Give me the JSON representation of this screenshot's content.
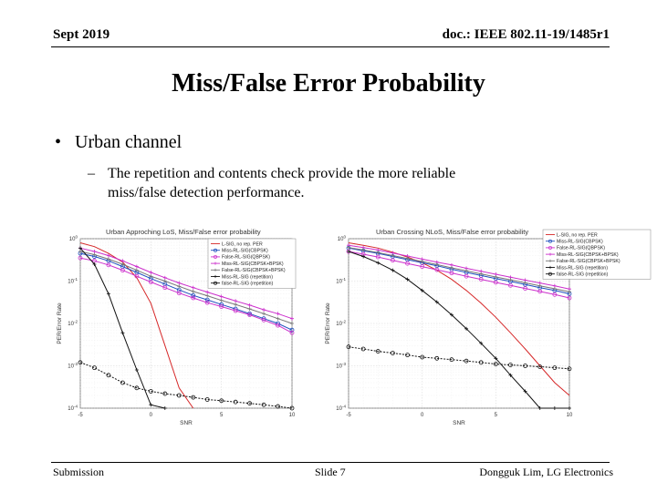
{
  "header": {
    "date": "Sept 2019",
    "doc": "doc.: IEEE 802.11-19/1485r1"
  },
  "title": "Miss/False Error Probability",
  "bullets": [
    {
      "text": "Urban channel",
      "sub": [
        "The repetition and contents check provide the more reliable",
        "miss/false detection performance."
      ]
    }
  ],
  "footer": {
    "left": "Submission",
    "center": "Slide 7",
    "right": "Dongguk Lim, LG Electronics"
  },
  "chart_data": [
    {
      "type": "line",
      "title": "Urban Approching LoS, Miss/False error probability",
      "xlabel": "SNR",
      "ylabel": "PER/Error Rate",
      "xlim": [
        -5,
        10
      ],
      "ylog": true,
      "ylim": [
        0.0001,
        1
      ],
      "xticks": [
        "-5",
        "0",
        "5",
        "10"
      ],
      "yticks": [
        "10^0",
        "10^-1",
        "10^-2",
        "10^-3",
        "10^-4"
      ],
      "grid": true,
      "legend_position": "top-right",
      "series": [
        {
          "name": "L-SIG, no rep. PER",
          "color": "#d62728",
          "marker": "none",
          "x": [
            -5,
            -4,
            -3,
            -2,
            -1,
            0,
            1,
            2,
            3
          ],
          "y": [
            0.8,
            0.65,
            0.45,
            0.28,
            0.12,
            0.03,
            0.003,
            0.0003,
            0.0001
          ]
        },
        {
          "name": "Miss-RL-SIG(CBPSK)",
          "color": "#1f4fbf",
          "marker": "circle",
          "x": [
            -5,
            -4,
            -3,
            -2,
            -1,
            0,
            1,
            2,
            3,
            4,
            5,
            6,
            7,
            8,
            9,
            10
          ],
          "y": [
            0.45,
            0.38,
            0.3,
            0.22,
            0.16,
            0.115,
            0.085,
            0.062,
            0.046,
            0.036,
            0.028,
            0.022,
            0.017,
            0.013,
            0.01,
            0.007
          ]
        },
        {
          "name": "False-RL-SIG(QBPSK)",
          "color": "#cc2fcc",
          "marker": "circle",
          "x": [
            -5,
            -4,
            -3,
            -2,
            -1,
            0,
            1,
            2,
            3,
            4,
            5,
            6,
            7,
            8,
            9,
            10
          ],
          "y": [
            0.35,
            0.3,
            0.24,
            0.18,
            0.13,
            0.095,
            0.07,
            0.052,
            0.04,
            0.031,
            0.025,
            0.02,
            0.016,
            0.012,
            0.009,
            0.006
          ]
        },
        {
          "name": "Miss-RL-SIG(CBPSK+BPSK)",
          "color": "#cc2fcc",
          "marker": "plus",
          "x": [
            -5,
            -4,
            -3,
            -2,
            -1,
            0,
            1,
            2,
            3,
            4,
            5,
            6,
            7,
            8,
            9,
            10
          ],
          "y": [
            0.6,
            0.5,
            0.4,
            0.3,
            0.22,
            0.16,
            0.12,
            0.09,
            0.07,
            0.055,
            0.043,
            0.034,
            0.027,
            0.021,
            0.017,
            0.013
          ]
        },
        {
          "name": "False-RL-SIG(CBPSK+BPSK)",
          "color": "#777777",
          "marker": "plus",
          "x": [
            -5,
            -4,
            -3,
            -2,
            -1,
            0,
            1,
            2,
            3,
            4,
            5,
            6,
            7,
            8,
            9,
            10
          ],
          "y": [
            0.5,
            0.42,
            0.33,
            0.25,
            0.18,
            0.13,
            0.1,
            0.075,
            0.057,
            0.045,
            0.035,
            0.028,
            0.022,
            0.017,
            0.013,
            0.01
          ]
        },
        {
          "name": "Miss-RL-SIG (repetition)",
          "color": "#111111",
          "marker": "plus",
          "x": [
            -5,
            -4,
            -3,
            -2,
            -1,
            0,
            1
          ],
          "y": [
            0.6,
            0.25,
            0.05,
            0.006,
            0.0008,
            0.00012,
            0.0001
          ]
        },
        {
          "name": "false-RL-SIG (repetition)",
          "color": "#111111",
          "marker": "circle",
          "x": [
            -5,
            -4,
            -3,
            -2,
            -1,
            0,
            1,
            2,
            3,
            4,
            5,
            6,
            7,
            8,
            9,
            10
          ],
          "y": [
            0.0012,
            0.0009,
            0.0006,
            0.0004,
            0.0003,
            0.00025,
            0.00022,
            0.0002,
            0.00018,
            0.00016,
            0.00015,
            0.00014,
            0.00013,
            0.00012,
            0.00011,
            0.0001
          ]
        }
      ]
    },
    {
      "type": "line",
      "title": "Urban Crossing NLoS, Miss/False error probability",
      "xlabel": "SNR",
      "ylabel": "PER/Error Rate",
      "xlim": [
        -5,
        10
      ],
      "ylog": true,
      "ylim": [
        0.0001,
        1
      ],
      "xticks": [
        "-5",
        "0",
        "5",
        "10"
      ],
      "yticks": [
        "10^0",
        "10^-1",
        "10^-2",
        "10^-3",
        "10^-4"
      ],
      "grid": true,
      "legend_position": "top-right",
      "series": [
        {
          "name": "L-SIG, no rep. PER",
          "color": "#d62728",
          "marker": "none",
          "x": [
            -5,
            -4,
            -3,
            -2,
            -1,
            0,
            1,
            2,
            3,
            4,
            5,
            6,
            7,
            8,
            9,
            10
          ],
          "y": [
            0.8,
            0.7,
            0.6,
            0.48,
            0.37,
            0.27,
            0.18,
            0.11,
            0.06,
            0.03,
            0.014,
            0.006,
            0.0025,
            0.001,
            0.0004,
            0.0002
          ]
        },
        {
          "name": "Miss-RL-SIG(CBPSK)",
          "color": "#1f4fbf",
          "marker": "circle",
          "x": [
            -5,
            -4,
            -3,
            -2,
            -1,
            0,
            1,
            2,
            3,
            4,
            5,
            6,
            7,
            8,
            9,
            10
          ],
          "y": [
            0.6,
            0.52,
            0.45,
            0.38,
            0.32,
            0.27,
            0.23,
            0.19,
            0.16,
            0.135,
            0.115,
            0.098,
            0.083,
            0.07,
            0.06,
            0.05
          ]
        },
        {
          "name": "False-RL-SIG(QBPSK)",
          "color": "#cc2fcc",
          "marker": "circle",
          "x": [
            -5,
            -4,
            -3,
            -2,
            -1,
            0,
            1,
            2,
            3,
            4,
            5,
            6,
            7,
            8,
            9,
            10
          ],
          "y": [
            0.5,
            0.43,
            0.37,
            0.31,
            0.26,
            0.22,
            0.185,
            0.155,
            0.13,
            0.11,
            0.093,
            0.079,
            0.067,
            0.057,
            0.048,
            0.04
          ]
        },
        {
          "name": "Miss-RL-SIG(CBPSK+BPSK)",
          "color": "#cc2fcc",
          "marker": "plus",
          "x": [
            -5,
            -4,
            -3,
            -2,
            -1,
            0,
            1,
            2,
            3,
            4,
            5,
            6,
            7,
            8,
            9,
            10
          ],
          "y": [
            0.7,
            0.62,
            0.54,
            0.46,
            0.39,
            0.33,
            0.28,
            0.24,
            0.2,
            0.17,
            0.145,
            0.123,
            0.105,
            0.09,
            0.077,
            0.065
          ]
        },
        {
          "name": "False-RL-SIG(CBPSK+BPSK)",
          "color": "#777777",
          "marker": "plus",
          "x": [
            -5,
            -4,
            -3,
            -2,
            -1,
            0,
            1,
            2,
            3,
            4,
            5,
            6,
            7,
            8,
            9,
            10
          ],
          "y": [
            0.62,
            0.54,
            0.47,
            0.4,
            0.34,
            0.29,
            0.245,
            0.205,
            0.175,
            0.148,
            0.125,
            0.107,
            0.091,
            0.077,
            0.066,
            0.056
          ]
        },
        {
          "name": "Miss-RL-SIG (repetition)",
          "color": "#111111",
          "marker": "plus",
          "x": [
            -5,
            -4,
            -3,
            -2,
            -1,
            0,
            1,
            2,
            3,
            4,
            5,
            6,
            7,
            8,
            9,
            10
          ],
          "y": [
            0.5,
            0.38,
            0.27,
            0.18,
            0.11,
            0.06,
            0.032,
            0.016,
            0.0075,
            0.0034,
            0.0015,
            0.0006,
            0.00025,
            0.0001,
            0.0001,
            0.0001
          ]
        },
        {
          "name": "false-RL-SIG (repetition)",
          "color": "#111111",
          "marker": "circle",
          "x": [
            -5,
            -4,
            -3,
            -2,
            -1,
            0,
            1,
            2,
            3,
            4,
            5,
            6,
            7,
            8,
            9,
            10
          ],
          "y": [
            0.0028,
            0.0025,
            0.0022,
            0.002,
            0.0018,
            0.0016,
            0.0015,
            0.0014,
            0.0013,
            0.0012,
            0.0011,
            0.00105,
            0.001,
            0.00095,
            0.0009,
            0.00085
          ]
        }
      ]
    }
  ]
}
